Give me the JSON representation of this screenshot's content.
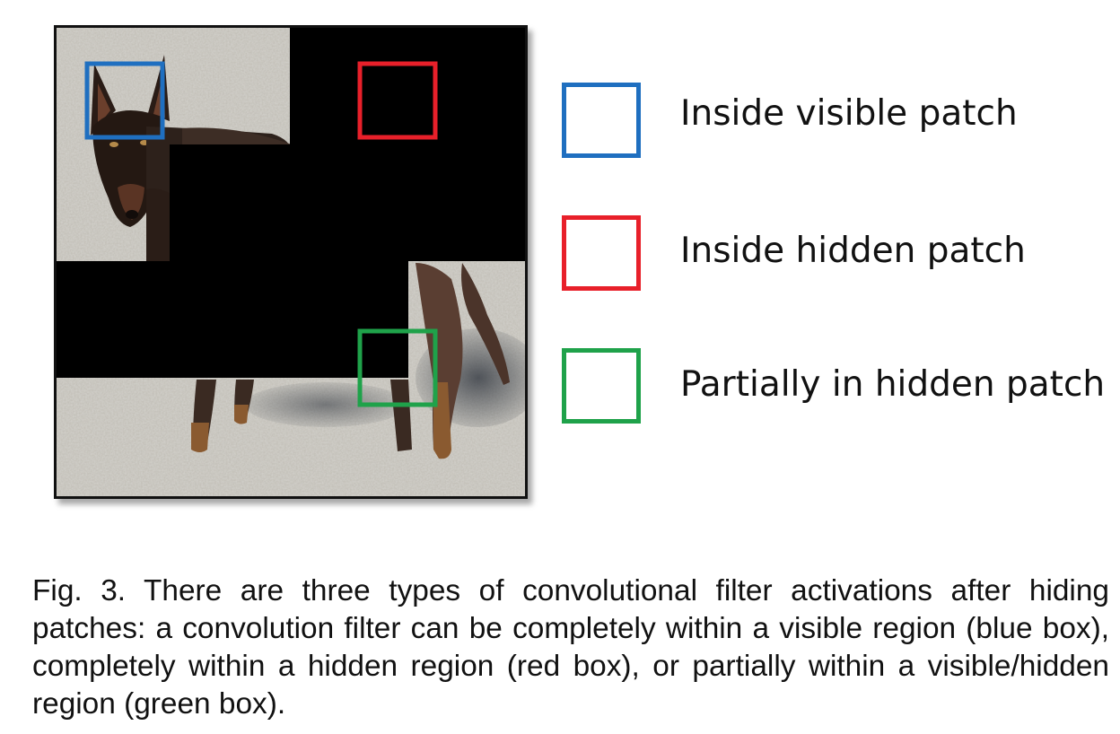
{
  "legend": {
    "visible": {
      "label": "Inside visible patch",
      "color": "#1f6fc0"
    },
    "hidden": {
      "label": "Inside hidden patch",
      "color": "#e8202a"
    },
    "partial": {
      "label": "Partially in hidden patch",
      "color": "#1fa24a"
    }
  },
  "caption": "Fig. 3. There are three types of convolutional filter activations after hiding patches: a convolution filter can be completely within a visible region (blue box), completely within a hidden region (red box), or partially within a visible/hidden region (green box)."
}
